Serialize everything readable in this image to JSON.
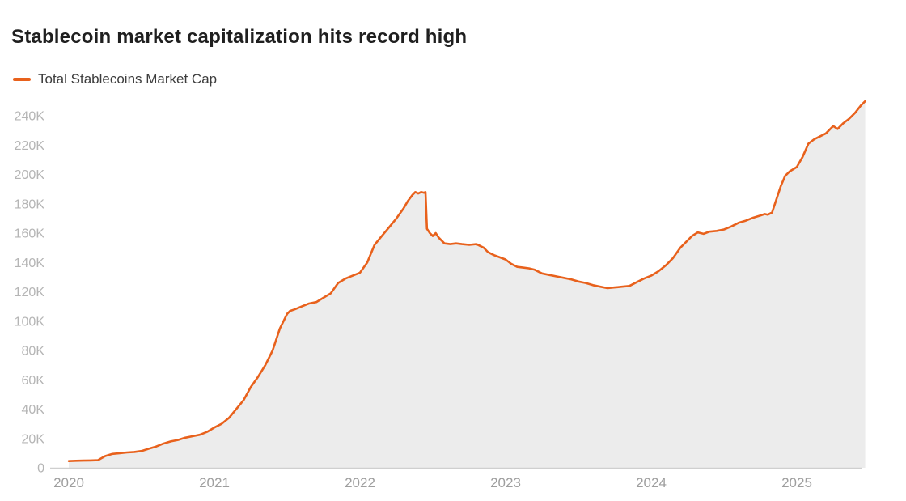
{
  "header": {
    "title": "Stablecoin market capitalization hits record high"
  },
  "legend": {
    "label": "Total Stablecoins Market Cap"
  },
  "chart_data": {
    "type": "area",
    "title": "Stablecoin market capitalization hits record high",
    "legend_entries": [
      "Total Stablecoins Market Cap"
    ],
    "legend_position": "top-left",
    "grid": "off",
    "xlabel": "",
    "ylabel": "",
    "x_range": [
      2020,
      2025.47
    ],
    "ylim": [
      0,
      250
    ],
    "xtick_values": [
      2020,
      2021,
      2022,
      2023,
      2024,
      2025
    ],
    "xtick_labels": [
      "2020",
      "2021",
      "2022",
      "2023",
      "2024",
      "2025"
    ],
    "ytick_values": [
      0,
      20,
      40,
      60,
      80,
      100,
      120,
      140,
      160,
      180,
      200,
      220,
      240
    ],
    "ytick_labels": [
      "0",
      "20K",
      "40K",
      "60K",
      "80K",
      "100K",
      "120K",
      "140K",
      "160K",
      "180K",
      "200K",
      "220K",
      "240K"
    ],
    "colors": {
      "line": "#e8611c",
      "area_fill": "#ececec",
      "axis_line": "#cfcfcf",
      "ytick_label": "#b5b5b5",
      "xtick_label": "#9e9e9e",
      "title": "#1f1f1f"
    },
    "series": [
      {
        "name": "Total Stablecoins Market Cap",
        "units": "K",
        "points": [
          [
            2020.0,
            4.6
          ],
          [
            2020.05,
            4.8
          ],
          [
            2020.1,
            4.9
          ],
          [
            2020.15,
            5.0
          ],
          [
            2020.2,
            5.2
          ],
          [
            2020.25,
            8.0
          ],
          [
            2020.3,
            9.5
          ],
          [
            2020.35,
            10.0
          ],
          [
            2020.4,
            10.5
          ],
          [
            2020.45,
            10.8
          ],
          [
            2020.5,
            11.5
          ],
          [
            2020.55,
            13.0
          ],
          [
            2020.6,
            14.5
          ],
          [
            2020.65,
            16.5
          ],
          [
            2020.7,
            18.0
          ],
          [
            2020.75,
            19.0
          ],
          [
            2020.8,
            20.5
          ],
          [
            2020.85,
            21.5
          ],
          [
            2020.9,
            22.5
          ],
          [
            2020.95,
            24.5
          ],
          [
            2021.0,
            27.5
          ],
          [
            2021.05,
            30.0
          ],
          [
            2021.1,
            34.0
          ],
          [
            2021.15,
            40.0
          ],
          [
            2021.2,
            46.0
          ],
          [
            2021.25,
            55.0
          ],
          [
            2021.3,
            62.0
          ],
          [
            2021.35,
            70.0
          ],
          [
            2021.4,
            80.0
          ],
          [
            2021.45,
            95.0
          ],
          [
            2021.5,
            105.0
          ],
          [
            2021.52,
            107.0
          ],
          [
            2021.55,
            108.0
          ],
          [
            2021.6,
            110.0
          ],
          [
            2021.65,
            112.0
          ],
          [
            2021.7,
            113.0
          ],
          [
            2021.75,
            116.0
          ],
          [
            2021.8,
            119.0
          ],
          [
            2021.85,
            126.0
          ],
          [
            2021.9,
            129.0
          ],
          [
            2021.95,
            131.0
          ],
          [
            2022.0,
            133.0
          ],
          [
            2022.05,
            140.0
          ],
          [
            2022.1,
            152.0
          ],
          [
            2022.15,
            158.0
          ],
          [
            2022.2,
            164.0
          ],
          [
            2022.25,
            170.0
          ],
          [
            2022.3,
            177.0
          ],
          [
            2022.33,
            182.0
          ],
          [
            2022.36,
            186.0
          ],
          [
            2022.38,
            188.0
          ],
          [
            2022.4,
            187.0
          ],
          [
            2022.42,
            188.0
          ],
          [
            2022.44,
            187.5
          ],
          [
            2022.45,
            188.0
          ],
          [
            2022.46,
            163.0
          ],
          [
            2022.48,
            160.0
          ],
          [
            2022.5,
            158.0
          ],
          [
            2022.52,
            160.0
          ],
          [
            2022.54,
            157.0
          ],
          [
            2022.58,
            153.0
          ],
          [
            2022.62,
            152.5
          ],
          [
            2022.66,
            153.0
          ],
          [
            2022.7,
            152.5
          ],
          [
            2022.75,
            152.0
          ],
          [
            2022.8,
            152.5
          ],
          [
            2022.85,
            150.0
          ],
          [
            2022.88,
            147.0
          ],
          [
            2022.92,
            145.0
          ],
          [
            2022.96,
            143.5
          ],
          [
            2023.0,
            142.0
          ],
          [
            2023.04,
            139.0
          ],
          [
            2023.08,
            137.0
          ],
          [
            2023.12,
            136.5
          ],
          [
            2023.16,
            136.0
          ],
          [
            2023.2,
            135.0
          ],
          [
            2023.25,
            132.5
          ],
          [
            2023.3,
            131.5
          ],
          [
            2023.35,
            130.5
          ],
          [
            2023.4,
            129.5
          ],
          [
            2023.45,
            128.5
          ],
          [
            2023.5,
            127.0
          ],
          [
            2023.55,
            126.0
          ],
          [
            2023.6,
            124.5
          ],
          [
            2023.65,
            123.5
          ],
          [
            2023.7,
            122.5
          ],
          [
            2023.75,
            123.0
          ],
          [
            2023.8,
            123.5
          ],
          [
            2023.85,
            124.0
          ],
          [
            2023.9,
            126.5
          ],
          [
            2023.95,
            129.0
          ],
          [
            2024.0,
            131.0
          ],
          [
            2024.05,
            134.0
          ],
          [
            2024.1,
            138.0
          ],
          [
            2024.15,
            143.0
          ],
          [
            2024.2,
            150.0
          ],
          [
            2024.25,
            155.0
          ],
          [
            2024.28,
            158.0
          ],
          [
            2024.32,
            160.5
          ],
          [
            2024.36,
            159.5
          ],
          [
            2024.4,
            161.0
          ],
          [
            2024.45,
            161.5
          ],
          [
            2024.5,
            162.5
          ],
          [
            2024.55,
            164.5
          ],
          [
            2024.6,
            167.0
          ],
          [
            2024.65,
            168.5
          ],
          [
            2024.7,
            170.5
          ],
          [
            2024.75,
            172.0
          ],
          [
            2024.78,
            173.0
          ],
          [
            2024.8,
            172.5
          ],
          [
            2024.83,
            174.0
          ],
          [
            2024.86,
            183.0
          ],
          [
            2024.89,
            192.0
          ],
          [
            2024.92,
            199.0
          ],
          [
            2024.95,
            202.0
          ],
          [
            2025.0,
            205.0
          ],
          [
            2025.04,
            212.0
          ],
          [
            2025.08,
            221.0
          ],
          [
            2025.12,
            224.0
          ],
          [
            2025.16,
            226.0
          ],
          [
            2025.2,
            228.0
          ],
          [
            2025.25,
            233.0
          ],
          [
            2025.28,
            231.0
          ],
          [
            2025.32,
            235.0
          ],
          [
            2025.36,
            238.0
          ],
          [
            2025.4,
            242.0
          ],
          [
            2025.44,
            247.0
          ],
          [
            2025.47,
            250.0
          ]
        ]
      }
    ]
  }
}
